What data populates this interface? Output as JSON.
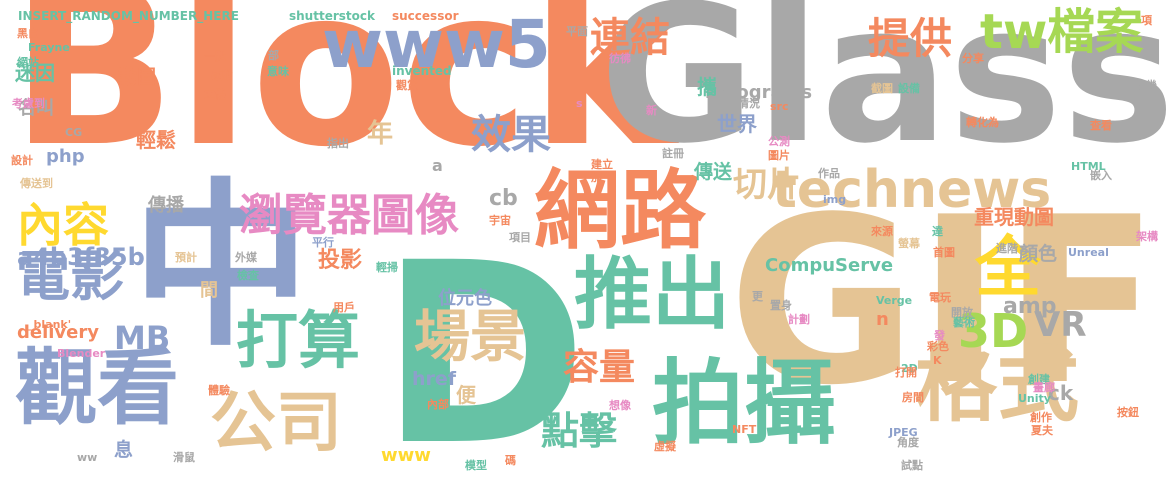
{
  "palette": {
    "orange": "#f4895f",
    "gray": "#a8a8a8",
    "blue": "#8da0cb",
    "tan": "#e5c494",
    "green": "#66c2a5",
    "lime": "#a6d854",
    "yellow": "#ffd92f",
    "pink": "#e78ac3"
  },
  "words": [
    {
      "text": "Block",
      "color": "orange"
    },
    {
      "text": "Glass",
      "color": "gray"
    },
    {
      "text": "GIF",
      "color": "tan"
    },
    {
      "text": "D",
      "color": "green"
    },
    {
      "text": "中",
      "color": "blue"
    },
    {
      "text": "網路",
      "color": "orange"
    },
    {
      "text": "拍攝",
      "color": "green"
    },
    {
      "text": "格式",
      "color": "tan"
    },
    {
      "text": "觀看",
      "color": "blue"
    },
    {
      "text": "推出",
      "color": "green"
    },
    {
      "text": "www5",
      "color": "blue"
    },
    {
      "text": "technews",
      "color": "tan"
    },
    {
      "text": "公司",
      "color": "tan"
    },
    {
      "text": "打算",
      "color": "green"
    },
    {
      "text": "電影",
      "color": "blue"
    },
    {
      "text": "場景",
      "color": "tan"
    },
    {
      "text": "瀏覽器圖像",
      "color": "pink"
    },
    {
      "text": "全",
      "color": "yellow"
    },
    {
      "text": "tw檔案",
      "color": "lime"
    },
    {
      "text": "內容",
      "color": "yellow"
    },
    {
      "text": "提供",
      "color": "orange"
    },
    {
      "text": "連結",
      "color": "orange"
    },
    {
      "text": "3D",
      "color": "lime"
    },
    {
      "text": "效果",
      "color": "blue"
    },
    {
      "text": "切片",
      "color": "tan"
    },
    {
      "text": "點擊",
      "color": "green"
    },
    {
      "text": "容量",
      "color": "orange"
    },
    {
      "text": "MB",
      "color": "blue"
    },
    {
      "text": "VR",
      "color": "gray"
    },
    {
      "text": "a4b3f35b",
      "color": "blue"
    },
    {
      "text": "holograms",
      "color": "gray"
    },
    {
      "text": "CompuServe",
      "color": "green"
    },
    {
      "text": "delivery",
      "color": "orange"
    },
    {
      "text": "重現動圖",
      "color": "orange"
    },
    {
      "text": "位元色",
      "color": "blue"
    },
    {
      "text": "投影",
      "color": "orange"
    },
    {
      "text": "href",
      "color": "blue"
    },
    {
      "text": "amp",
      "color": "gray"
    },
    {
      "text": "世界",
      "color": "blue"
    },
    {
      "text": "傳送",
      "color": "green"
    },
    {
      "text": "顏色",
      "color": "gray"
    },
    {
      "text": "迷因",
      "color": "green"
    },
    {
      "text": "名叫",
      "color": "gray"
    },
    {
      "text": "動圖",
      "color": "orange"
    },
    {
      "text": "輕鬆",
      "color": "orange"
    },
    {
      "text": "年",
      "color": "tan"
    },
    {
      "text": "php",
      "color": "blue"
    },
    {
      "text": "cb",
      "color": "gray"
    },
    {
      "text": "攜",
      "color": "green"
    },
    {
      "text": "傳播",
      "color": "gray"
    },
    {
      "text": "便",
      "color": "tan"
    },
    {
      "text": "間",
      "color": "tan"
    },
    {
      "text": "ck",
      "color": "gray"
    },
    {
      "text": "n",
      "color": "orange"
    },
    {
      "text": "www",
      "color": "yellow"
    },
    {
      "text": "息",
      "color": "blue"
    },
    {
      "text": "a",
      "color": "gray"
    },
    {
      "text": "INSERT_RANDOM_NUMBER_HERE",
      "color": "green"
    },
    {
      "text": "shutterstock",
      "color": "green"
    },
    {
      "text": "successor",
      "color": "orange"
    },
    {
      "text": "invented",
      "color": "green"
    },
    {
      "text": "黑白",
      "color": "orange"
    },
    {
      "text": "Frayne",
      "color": "green"
    },
    {
      "text": "網站",
      "color": "green"
    },
    {
      "text": "考慮到",
      "color": "pink"
    },
    {
      "text": "CG",
      "color": "gray"
    },
    {
      "text": "設計",
      "color": "orange"
    },
    {
      "text": "傳送到",
      "color": "tan"
    },
    {
      "text": "一點",
      "color": "orange"
    },
    {
      "text": "啟動",
      "color": "orange"
    },
    {
      "text": "立體",
      "color": "orange"
    },
    {
      "text": "部",
      "color": "gray"
    },
    {
      "text": "意味",
      "color": "green"
    },
    {
      "text": "觀賞",
      "color": "orange"
    },
    {
      "text": "平面",
      "color": "gray"
    },
    {
      "text": "彷彿",
      "color": "pink"
    },
    {
      "text": "新",
      "color": "pink"
    },
    {
      "text": "s",
      "color": "pink"
    },
    {
      "text": "情況",
      "color": "gray"
    },
    {
      "text": "src",
      "color": "orange"
    },
    {
      "text": "項",
      "color": "orange"
    },
    {
      "text": "分享",
      "color": "orange"
    },
    {
      "text": "好幾",
      "color": "gray"
    },
    {
      "text": "截圖",
      "color": "tan"
    },
    {
      "text": "設備",
      "color": "green"
    },
    {
      "text": "轉化為",
      "color": "orange"
    },
    {
      "text": "查看",
      "color": "orange"
    },
    {
      "text": "公測",
      "color": "pink"
    },
    {
      "text": "圖片",
      "color": "orange"
    },
    {
      "text": "指出",
      "color": "gray"
    },
    {
      "text": "註冊",
      "color": "gray"
    },
    {
      "text": "建立",
      "color": "orange"
    },
    {
      "text": "加",
      "color": "orange"
    },
    {
      "text": "作品",
      "color": "gray"
    },
    {
      "text": "HTML",
      "color": "green"
    },
    {
      "text": "嵌入",
      "color": "gray"
    },
    {
      "text": "img",
      "color": "blue"
    },
    {
      "text": "宇宙",
      "color": "orange"
    },
    {
      "text": "項目",
      "color": "gray"
    },
    {
      "text": "來源",
      "color": "orange"
    },
    {
      "text": "達",
      "color": "green"
    },
    {
      "text": "首圖",
      "color": "orange"
    },
    {
      "text": "進階",
      "color": "gray"
    },
    {
      "text": "Unreal",
      "color": "blue"
    },
    {
      "text": "架構",
      "color": "pink"
    },
    {
      "text": "螢幕",
      "color": "tan"
    },
    {
      "text": "平行",
      "color": "blue"
    },
    {
      "text": "預計",
      "color": "tan"
    },
    {
      "text": "外媒",
      "color": "gray"
    },
    {
      "text": "檢查",
      "color": "green"
    },
    {
      "text": "輕掃",
      "color": "green"
    },
    {
      "text": "target",
      "color": "green"
    },
    {
      "text": "用戶",
      "color": "orange"
    },
    {
      "text": "_blank'",
      "color": "orange"
    },
    {
      "text": "Blender",
      "color": "pink"
    },
    {
      "text": "電玩",
      "color": "orange"
    },
    {
      "text": "開放",
      "color": "gray"
    },
    {
      "text": "置身",
      "color": "gray"
    },
    {
      "text": "更",
      "color": "gray"
    },
    {
      "text": "計劃",
      "color": "pink"
    },
    {
      "text": "藝術",
      "color": "green"
    },
    {
      "text": "發",
      "color": "pink"
    },
    {
      "text": "彩色",
      "color": "orange"
    },
    {
      "text": "K",
      "color": "orange"
    },
    {
      "text": "Verge",
      "color": "green"
    },
    {
      "text": "2D",
      "color": "green"
    },
    {
      "text": "創建",
      "color": "green"
    },
    {
      "text": "Unity",
      "color": "green"
    },
    {
      "text": "畫廊",
      "color": "pink"
    },
    {
      "text": "體驗",
      "color": "orange"
    },
    {
      "text": "內部",
      "color": "orange"
    },
    {
      "text": "想像",
      "color": "pink"
    },
    {
      "text": "打開",
      "color": "orange"
    },
    {
      "text": "房間",
      "color": "orange"
    },
    {
      "text": "創作",
      "color": "orange"
    },
    {
      "text": "夏夫",
      "color": "orange"
    },
    {
      "text": "角度",
      "color": "gray"
    },
    {
      "text": "NFT",
      "color": "orange"
    },
    {
      "text": "JPEG",
      "color": "blue"
    },
    {
      "text": "按鈕",
      "color": "orange"
    },
    {
      "text": "ww",
      "color": "gray"
    },
    {
      "text": "滑鼠",
      "color": "gray"
    },
    {
      "text": "模型",
      "color": "green"
    },
    {
      "text": "碼",
      "color": "orange"
    },
    {
      "text": "虛擬",
      "color": "orange"
    },
    {
      "text": "試點",
      "color": "gray"
    }
  ]
}
